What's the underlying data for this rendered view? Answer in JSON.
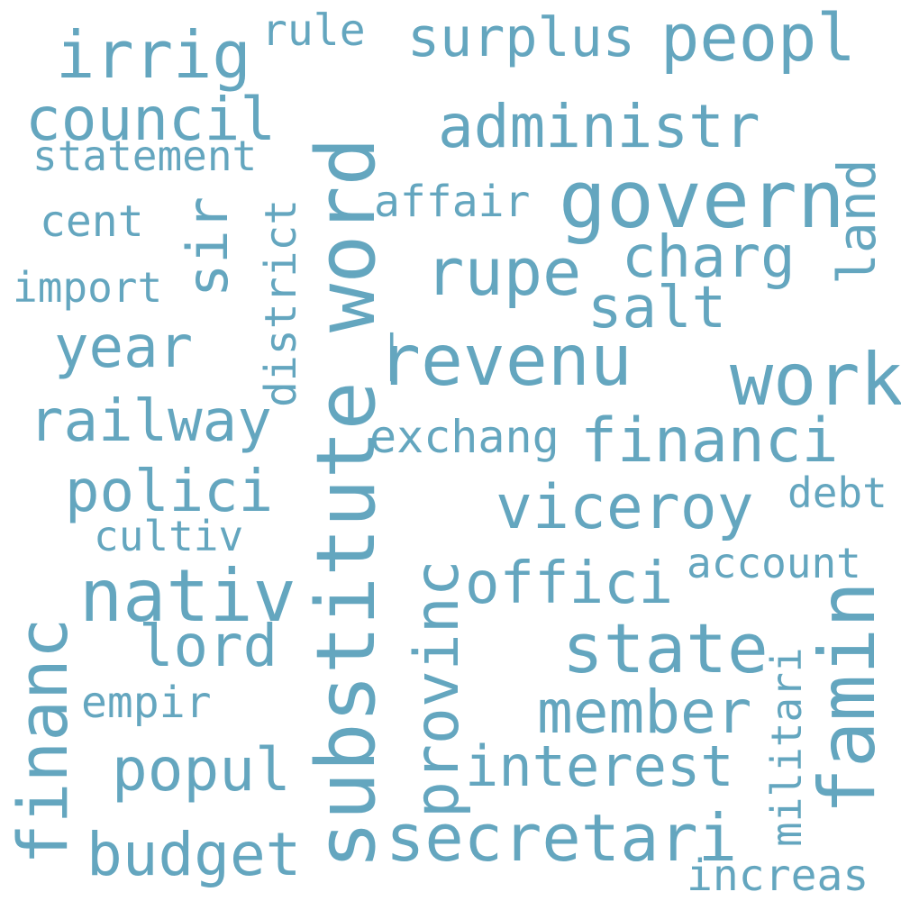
{
  "color": "#64a6bf",
  "words": {
    "substitute_word": "substitute_word",
    "govern": "govern",
    "revenu": "revenu",
    "secretari": "secretari",
    "famin": "famin",
    "nativ": "nativ",
    "state": "state",
    "work": "work",
    "viceroy": "viceroy",
    "irrig": "irrig",
    "peopl": "peopl",
    "surplus": "surplus",
    "administr": "administr",
    "council": "council",
    "statement": "statement",
    "rule": "rule",
    "sir": "sir",
    "district": "district",
    "affair": "affair",
    "cent": "cent",
    "import": "import",
    "rupe": "rupe",
    "charg": "charg",
    "land": "land",
    "salt": "salt",
    "year": "year",
    "railway": "railway",
    "exchang": "exchang",
    "financi": "financi",
    "polici": "polici",
    "debt": "debt",
    "cultiv": "cultiv",
    "account": "account",
    "offici": "offici",
    "provinc": "provinc",
    "lord": "lord",
    "financ": "financ",
    "empir": "empir",
    "member": "member",
    "militari": "militari",
    "popul": "popul",
    "interest": "interest",
    "budget": "budget",
    "increas": "increas"
  }
}
